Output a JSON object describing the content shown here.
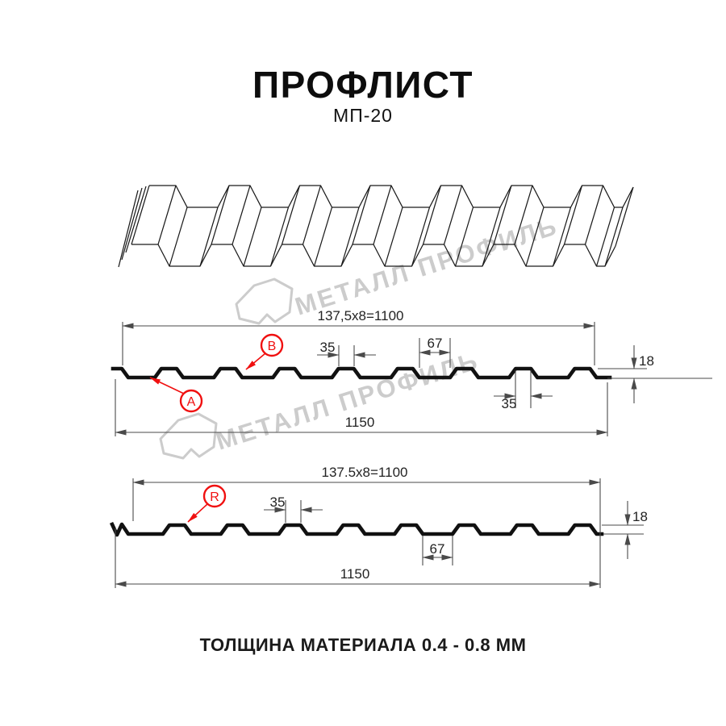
{
  "header": {
    "title": "ПРОФЛИСТ",
    "model": "МП-20"
  },
  "watermark": {
    "brand": "МЕТАЛЛ ПРОФИЛЬ"
  },
  "diagram_top": {
    "coverage_width": "137,5x8=1100",
    "overall_width": "1150",
    "crest_width": "35",
    "valley_width": "67",
    "profile_height": "18",
    "crest_width_bottom": "35",
    "callout_a": "A",
    "callout_b": "B"
  },
  "diagram_bottom": {
    "coverage_width": "137.5x8=1100",
    "overall_width": "1150",
    "crest_width": "35",
    "valley_width": "67",
    "profile_height": "18",
    "callout_r": "R"
  },
  "footer": {
    "material_thickness": "ТОЛЩИНА МАТЕРИАЛА 0.4 - 0.8 ММ"
  },
  "colors": {
    "accent": "#f01010",
    "line": "#1a1a1a",
    "dim_line": "#4a4a4a",
    "watermark": "#cccccc"
  }
}
